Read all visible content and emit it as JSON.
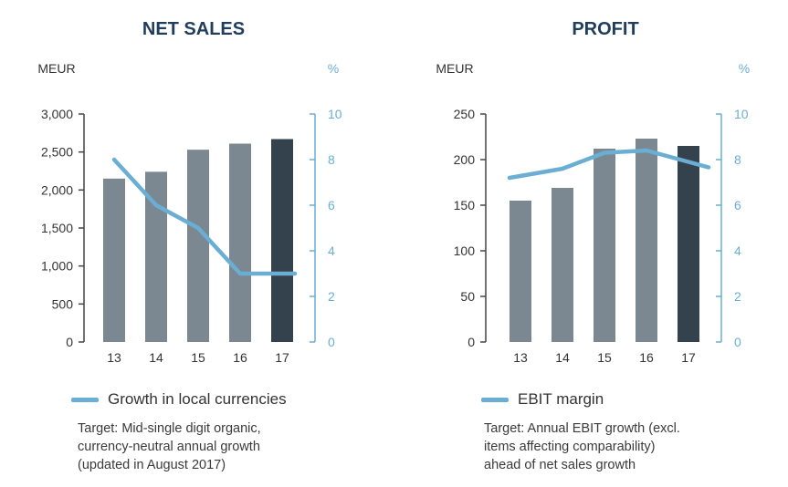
{
  "chart_data": [
    {
      "type": "bar",
      "title": "NET SALES",
      "categories": [
        "13",
        "14",
        "15",
        "16",
        "17"
      ],
      "series": [
        {
          "values": [
            2150,
            2240,
            2530,
            2610,
            2670
          ],
          "axis": "left",
          "colors": [
            "#7b8892",
            "#7b8892",
            "#7b8892",
            "#7b8892",
            "#34424d"
          ]
        },
        {
          "name": "Growth in local currencies",
          "type": "line",
          "axis": "right",
          "values": [
            8,
            6,
            5,
            3,
            3
          ],
          "color": "#6aaed3"
        }
      ],
      "left_axis": {
        "unit": "MEUR",
        "ylim": [
          0,
          3000
        ],
        "ticks": [
          "0",
          "500",
          "1,000",
          "1,500",
          "2,000",
          "2,500",
          "3,000"
        ]
      },
      "right_axis": {
        "unit": "%",
        "ylim": [
          0,
          10
        ],
        "ticks": [
          "0",
          "2",
          "4",
          "6",
          "8",
          "10"
        ]
      },
      "note": [
        "Target: Mid-single digit organic,",
        "currency-neutral annual growth",
        "(updated in August 2017)"
      ],
      "grid": false
    },
    {
      "type": "bar",
      "title": "PROFIT",
      "categories": [
        "13",
        "14",
        "15",
        "16",
        "17"
      ],
      "series": [
        {
          "values": [
            155,
            169,
            212,
            223,
            215
          ],
          "axis": "left",
          "colors": [
            "#7b8892",
            "#7b8892",
            "#7b8892",
            "#7b8892",
            "#34424d"
          ]
        },
        {
          "name": "EBIT margin",
          "type": "line",
          "axis": "right",
          "values": [
            7.2,
            7.6,
            8.3,
            8.4,
            7.9
          ],
          "color": "#6aaed3"
        }
      ],
      "left_axis": {
        "unit": "MEUR",
        "ylim": [
          0,
          250
        ],
        "ticks": [
          "0",
          "50",
          "100",
          "150",
          "200",
          "250"
        ]
      },
      "right_axis": {
        "unit": "%",
        "ylim": [
          0,
          10
        ],
        "ticks": [
          "0",
          "2",
          "4",
          "6",
          "8",
          "10"
        ]
      },
      "note": [
        "Target: Annual EBIT growth (excl.",
        "items affecting comparability)",
        "ahead of net sales growth"
      ],
      "grid": false
    }
  ],
  "colors": {
    "title": "#1f3d5c",
    "axis_left": "#3a3a3a",
    "axis_right": "#6aaed3"
  }
}
